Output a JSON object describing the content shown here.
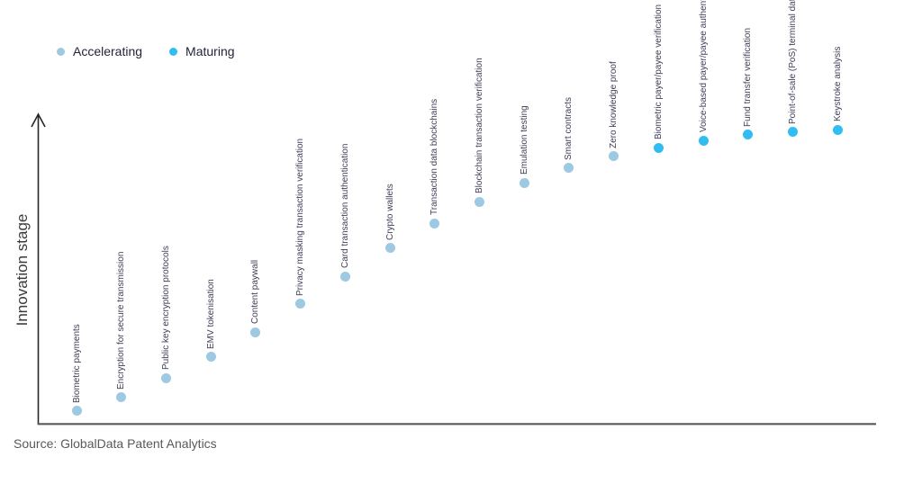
{
  "legend": {
    "items": [
      {
        "label": "Accelerating",
        "color": "#9dc9e2"
      },
      {
        "label": "Maturing",
        "color": "#31bdf2"
      }
    ]
  },
  "source_note": "Source: GlobalData Patent Analytics",
  "chart_data": {
    "type": "scatter",
    "title": "",
    "xlabel": "",
    "ylabel": "Innovation stage",
    "ylim": [
      0,
      1
    ],
    "grid": false,
    "legend_position": "top-left",
    "x_axis_ticks": "none",
    "y_axis_ticks": "none",
    "y_axis_style": "arrow",
    "point_label_rotation": -90,
    "points": [
      {
        "label": "Biometric payments",
        "stage": "Accelerating",
        "value": 0.041
      },
      {
        "label": "Encryption for secure transmission",
        "stage": "Accelerating",
        "value": 0.085
      },
      {
        "label": "Public key encryption protocols",
        "stage": "Accelerating",
        "value": 0.148
      },
      {
        "label": "EMV tokenisation",
        "stage": "Accelerating",
        "value": 0.216
      },
      {
        "label": "Content paywall",
        "stage": "Accelerating",
        "value": 0.297
      },
      {
        "label": "Privacy masking transaction verification",
        "stage": "Accelerating",
        "value": 0.388
      },
      {
        "label": "Card transaction authentication",
        "stage": "Accelerating",
        "value": 0.478
      },
      {
        "label": "Crypto wallets",
        "stage": "Accelerating",
        "value": 0.569
      },
      {
        "label": "Transaction data blockchains",
        "stage": "Accelerating",
        "value": 0.65
      },
      {
        "label": "Blockchain transaction verification",
        "stage": "Accelerating",
        "value": 0.72
      },
      {
        "label": "Emulation testing",
        "stage": "Accelerating",
        "value": 0.781
      },
      {
        "label": "Smart contracts",
        "stage": "Accelerating",
        "value": 0.828
      },
      {
        "label": "Zero knowledge proof",
        "stage": "Accelerating",
        "value": 0.866
      },
      {
        "label": "Biometric payer/payee verification",
        "stage": "Maturing",
        "value": 0.895
      },
      {
        "label": "Voice-based payer/payee authentication",
        "stage": "Maturing",
        "value": 0.918
      },
      {
        "label": "Fund transfer verification",
        "stage": "Maturing",
        "value": 0.936
      },
      {
        "label": "Point-of-sale (PoS) terminal data security",
        "stage": "Maturing",
        "value": 0.945
      },
      {
        "label": "Keystroke analysis",
        "stage": "Maturing",
        "value": 0.953
      }
    ]
  }
}
